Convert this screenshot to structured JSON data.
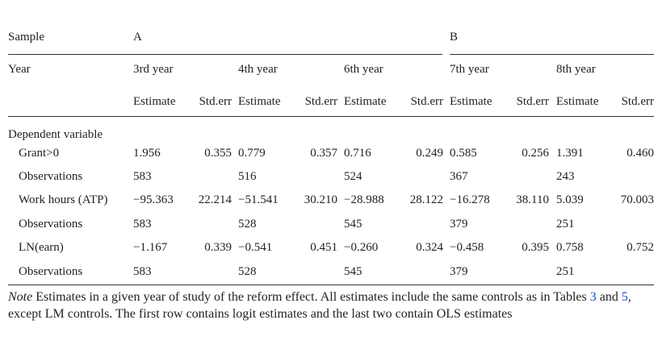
{
  "table": {
    "sample_row": [
      "Sample",
      "A",
      "B"
    ],
    "year_row": [
      "Year",
      "3rd year",
      "4th year",
      "6th year",
      "7th year",
      "8th year"
    ],
    "subheaders": [
      "Estimate",
      "Std.err",
      "Estimate",
      "Std.err",
      "Estimate",
      "Std.err",
      "Estimate",
      "Std.err",
      "Estimate",
      "Std.err"
    ],
    "section": "Dependent variable",
    "rows": [
      {
        "label": "Grant>0",
        "cells": [
          [
            "1.956",
            "0.355"
          ],
          [
            "0.779",
            "0.357"
          ],
          [
            "0.716",
            "0.249"
          ],
          [
            "0.585",
            "0.256"
          ],
          [
            "1.391",
            "0.460"
          ]
        ]
      },
      {
        "label": "Observations",
        "cells": [
          [
            "583"
          ],
          [
            "516"
          ],
          [
            "524"
          ],
          [
            "367"
          ],
          [
            "243"
          ]
        ]
      },
      {
        "label": "Work hours (ATP)",
        "cells": [
          [
            "−95.363",
            "22.214"
          ],
          [
            "−51.541",
            "30.210"
          ],
          [
            "−28.988",
            "28.122"
          ],
          [
            "−16.278",
            "38.110"
          ],
          [
            "5.039",
            "70.003"
          ]
        ]
      },
      {
        "label": "Observations",
        "cells": [
          [
            "583"
          ],
          [
            "528"
          ],
          [
            "545"
          ],
          [
            "379"
          ],
          [
            "251"
          ]
        ]
      },
      {
        "label": "LN(earn)",
        "cells": [
          [
            "−1.167",
            "0.339"
          ],
          [
            "−0.541",
            "0.451"
          ],
          [
            "−0.260",
            "0.324"
          ],
          [
            "−0.458",
            "0.395"
          ],
          [
            "0.758",
            "0.752"
          ]
        ]
      },
      {
        "label": "Observations",
        "cells": [
          [
            "583"
          ],
          [
            "528"
          ],
          [
            "545"
          ],
          [
            "379"
          ],
          [
            "251"
          ]
        ]
      }
    ]
  },
  "note": {
    "label": "Note",
    "parts": [
      " Estimates in a given year of study of the reform effect. All estimates include the same controls as in Tables ",
      "3",
      " and ",
      "5",
      ", except LM controls. The first row contains logit estimates and the last two contain OLS estimates"
    ]
  }
}
